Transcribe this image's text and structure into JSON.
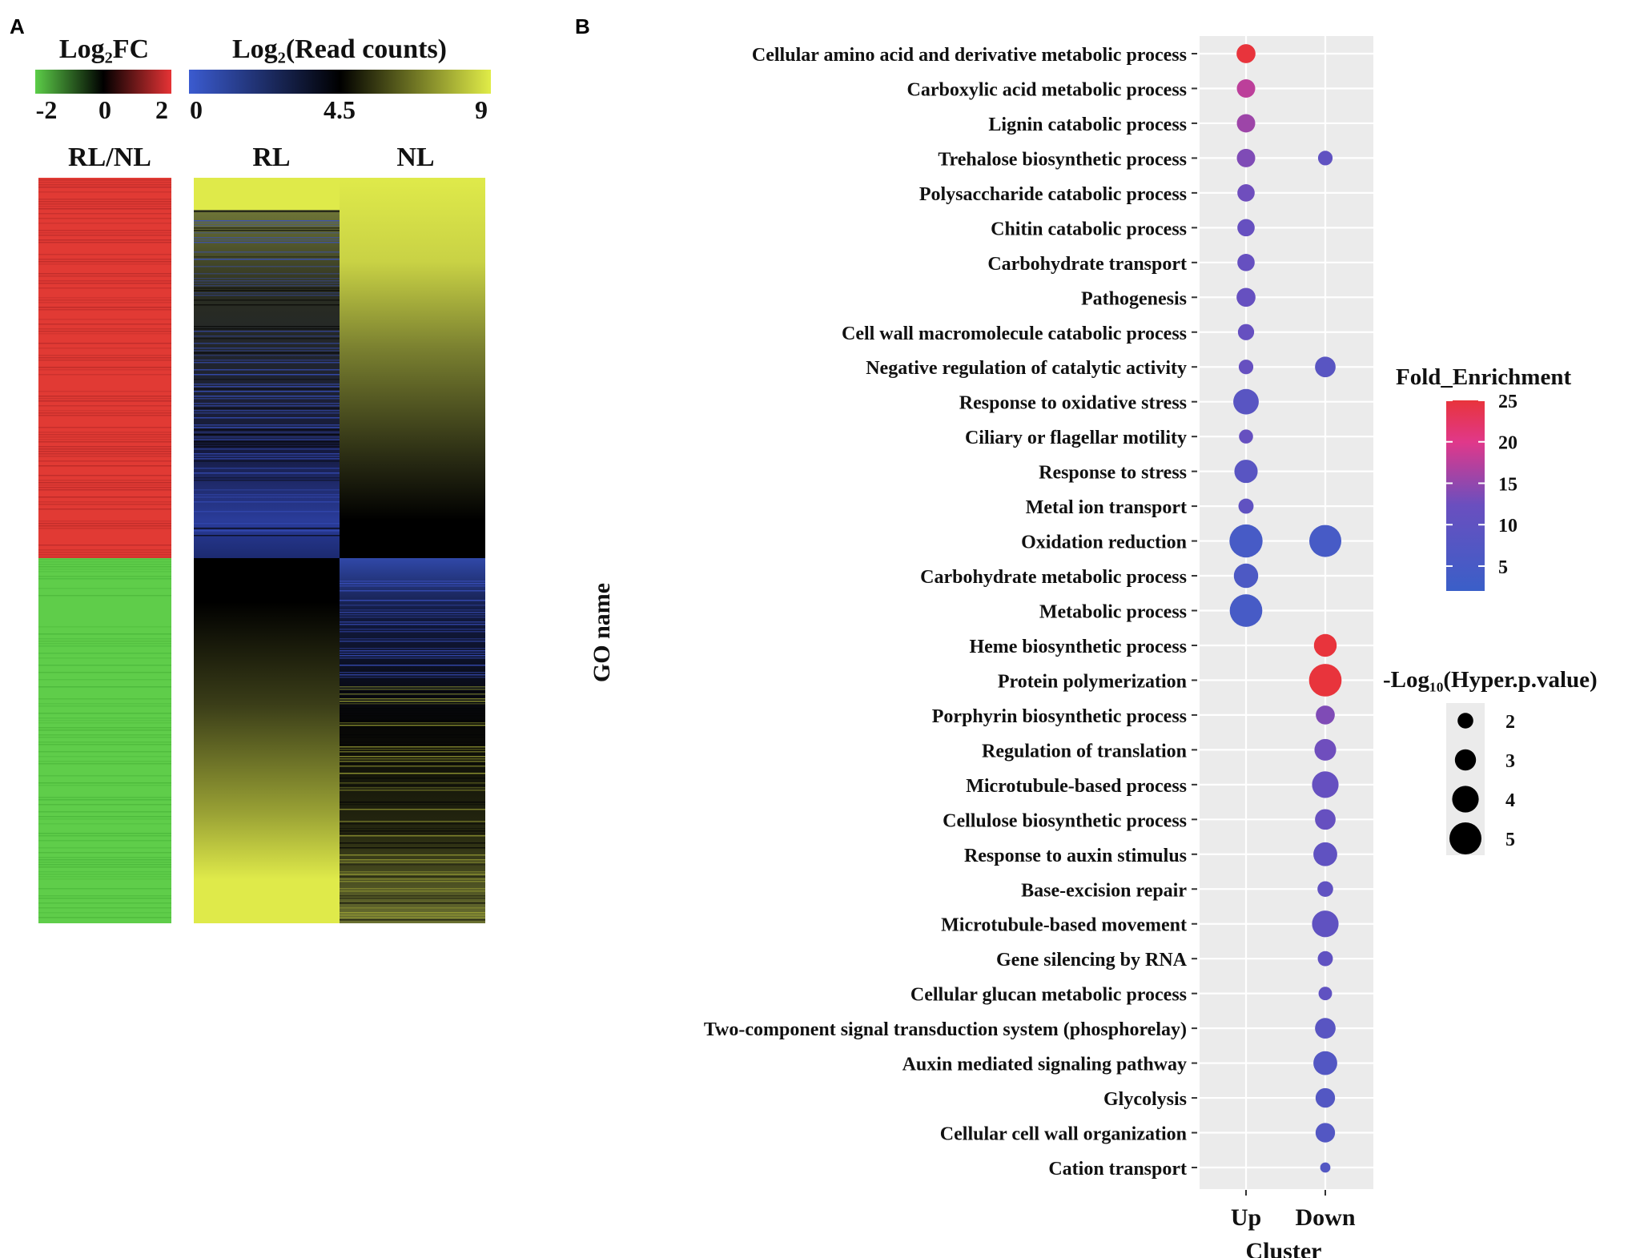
{
  "panel_a": {
    "label": "A",
    "fc_legend": {
      "title": "Log₂FC",
      "ticks": [
        "-2",
        "0",
        "2"
      ],
      "colors": [
        "#5ccd48",
        "#000000",
        "#e63335"
      ]
    },
    "rc_legend": {
      "title": "Log₂(Read counts)",
      "ticks": [
        "0",
        "4.5",
        "9"
      ],
      "colors": [
        "#3b5bd0",
        "#000000",
        "#e0ec48"
      ]
    },
    "column_labels": {
      "ratio": "RL/NL",
      "rl": "RL",
      "nl": "NL"
    },
    "up_fraction": 0.51,
    "colors": {
      "red": "#e13a34",
      "green": "#5fcd4a",
      "yellow": "#dfea4a",
      "black": "#000000",
      "blue": "#3a54c2"
    }
  },
  "panel_b": {
    "label": "B",
    "ylabel": "GO name",
    "xlabel": "Cluster",
    "size_legend": {
      "title": "-Log₁₀(Hyper.p.value)",
      "values": [
        2,
        3,
        4,
        5
      ]
    },
    "color_legend": {
      "title": "Fold_Enrichment",
      "ticks": [
        25,
        20,
        15,
        10,
        5
      ],
      "min": 2,
      "max": 25,
      "colors": [
        "#3a5fc8",
        "#6a4fbf",
        "#e0388a",
        "#e8343c"
      ]
    }
  },
  "chart_data": {
    "type": "scatter",
    "title": "",
    "xlabel": "Cluster",
    "ylabel": "GO name",
    "categories": [
      "Up",
      "Down"
    ],
    "terms": [
      "Cellular amino acid and derivative metabolic process",
      "Carboxylic acid metabolic process",
      "Lignin catabolic process",
      "Trehalose biosynthetic process",
      "Polysaccharide catabolic process",
      "Chitin catabolic process",
      "Carbohydrate transport",
      "Pathogenesis",
      "Cell wall macromolecule catabolic process",
      "Negative regulation of catalytic activity",
      "Response to oxidative stress",
      "Ciliary or flagellar motility",
      "Response to stress",
      "Metal ion transport",
      "Oxidation reduction",
      "Carbohydrate metabolic process",
      "Metabolic process",
      "Heme biosynthetic process",
      "Protein polymerization",
      "Porphyrin biosynthetic process",
      "Regulation of translation",
      "Microtubule-based process",
      "Cellulose biosynthetic process",
      "Response to auxin stimulus",
      "Base-excision repair",
      "Microtubule-based movement",
      "Gene silencing by RNA",
      "Cellular glucan metabolic process",
      "Two-component signal transduction system (phosphorelay)",
      "Auxin mediated signaling pathway",
      "Glycolysis",
      "Cellular cell wall organization",
      "Cation transport"
    ],
    "points": [
      {
        "term": "Cellular amino acid and derivative metabolic process",
        "cluster": "Up",
        "fold_enrichment": 25,
        "neg_log10_p": 2.6
      },
      {
        "term": "Carboxylic acid metabolic process",
        "cluster": "Up",
        "fold_enrichment": 15,
        "neg_log10_p": 2.5
      },
      {
        "term": "Lignin catabolic process",
        "cluster": "Up",
        "fold_enrichment": 13,
        "neg_log10_p": 2.5
      },
      {
        "term": "Trehalose biosynthetic process",
        "cluster": "Up",
        "fold_enrichment": 11,
        "neg_log10_p": 2.5
      },
      {
        "term": "Trehalose biosynthetic process",
        "cluster": "Down",
        "fold_enrichment": 8,
        "neg_log10_p": 1.8
      },
      {
        "term": "Polysaccharide catabolic process",
        "cluster": "Up",
        "fold_enrichment": 10,
        "neg_log10_p": 2.3
      },
      {
        "term": "Chitin catabolic process",
        "cluster": "Up",
        "fold_enrichment": 9,
        "neg_log10_p": 2.3
      },
      {
        "term": "Carbohydrate transport",
        "cluster": "Up",
        "fold_enrichment": 9,
        "neg_log10_p": 2.3
      },
      {
        "term": "Pathogenesis",
        "cluster": "Up",
        "fold_enrichment": 9,
        "neg_log10_p": 2.6
      },
      {
        "term": "Cell wall macromolecule catabolic process",
        "cluster": "Up",
        "fold_enrichment": 9,
        "neg_log10_p": 2.1
      },
      {
        "term": "Negative regulation of catalytic activity",
        "cluster": "Up",
        "fold_enrichment": 9,
        "neg_log10_p": 1.8
      },
      {
        "term": "Negative regulation of catalytic activity",
        "cluster": "Down",
        "fold_enrichment": 7,
        "neg_log10_p": 2.9
      },
      {
        "term": "Response to oxidative stress",
        "cluster": "Up",
        "fold_enrichment": 7,
        "neg_log10_p": 3.8
      },
      {
        "term": "Ciliary or flagellar motility",
        "cluster": "Up",
        "fold_enrichment": 9,
        "neg_log10_p": 1.7
      },
      {
        "term": "Response to stress",
        "cluster": "Up",
        "fold_enrichment": 7,
        "neg_log10_p": 3.4
      },
      {
        "term": "Metal ion transport",
        "cluster": "Up",
        "fold_enrichment": 8,
        "neg_log10_p": 1.9
      },
      {
        "term": "Oxidation reduction",
        "cluster": "Up",
        "fold_enrichment": 4,
        "neg_log10_p": 5.2
      },
      {
        "term": "Oxidation reduction",
        "cluster": "Down",
        "fold_enrichment": 4,
        "neg_log10_p": 5.0
      },
      {
        "term": "Carbohydrate metabolic process",
        "cluster": "Up",
        "fold_enrichment": 5,
        "neg_log10_p": 3.6
      },
      {
        "term": "Metabolic process",
        "cluster": "Up",
        "fold_enrichment": 4,
        "neg_log10_p": 5.1
      },
      {
        "term": "Heme biosynthetic process",
        "cluster": "Down",
        "fold_enrichment": 25,
        "neg_log10_p": 3.3
      },
      {
        "term": "Protein polymerization",
        "cluster": "Down",
        "fold_enrichment": 25,
        "neg_log10_p": 5.1
      },
      {
        "term": "Porphyrin biosynthetic process",
        "cluster": "Down",
        "fold_enrichment": 11,
        "neg_log10_p": 2.6
      },
      {
        "term": "Regulation of translation",
        "cluster": "Down",
        "fold_enrichment": 10,
        "neg_log10_p": 3.1
      },
      {
        "term": "Microtubule-based process",
        "cluster": "Down",
        "fold_enrichment": 9,
        "neg_log10_p": 4.0
      },
      {
        "term": "Cellulose biosynthetic process",
        "cluster": "Down",
        "fold_enrichment": 9,
        "neg_log10_p": 2.9
      },
      {
        "term": "Response to auxin stimulus",
        "cluster": "Down",
        "fold_enrichment": 8,
        "neg_log10_p": 3.5
      },
      {
        "term": "Base-excision repair",
        "cluster": "Down",
        "fold_enrichment": 8,
        "neg_log10_p": 2.0
      },
      {
        "term": "Microtubule-based movement",
        "cluster": "Down",
        "fold_enrichment": 8,
        "neg_log10_p": 4.0
      },
      {
        "term": "Gene silencing by RNA",
        "cluster": "Down",
        "fold_enrichment": 8,
        "neg_log10_p": 1.9
      },
      {
        "term": "Cellular glucan metabolic process",
        "cluster": "Down",
        "fold_enrichment": 8,
        "neg_log10_p": 1.6
      },
      {
        "term": "Two-component signal transduction system (phosphorelay)",
        "cluster": "Down",
        "fold_enrichment": 7,
        "neg_log10_p": 2.9
      },
      {
        "term": "Auxin mediated signaling pathway",
        "cluster": "Down",
        "fold_enrichment": 6,
        "neg_log10_p": 3.5
      },
      {
        "term": "Glycolysis",
        "cluster": "Down",
        "fold_enrichment": 6,
        "neg_log10_p": 2.7
      },
      {
        "term": "Cellular cell wall organization",
        "cluster": "Down",
        "fold_enrichment": 6,
        "neg_log10_p": 2.7
      },
      {
        "term": "Cation transport",
        "cluster": "Down",
        "fold_enrichment": 6,
        "neg_log10_p": 1.0
      }
    ]
  }
}
